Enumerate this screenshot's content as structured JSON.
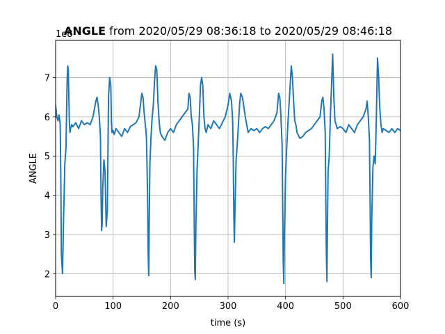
{
  "chart_data": {
    "type": "line",
    "title_bold": "ANGLE",
    "title_rest": " from 2020/05/29 08:36:18 to 2020/05/29 08:46:18",
    "xlabel": "time (s)",
    "ylabel": "ANGLE",
    "y_offset_text": "1e8",
    "xlim": [
      0,
      600
    ],
    "ylim": [
      1.42,
      7.95
    ],
    "xticks": [
      0,
      100,
      200,
      300,
      400,
      500,
      600
    ],
    "yticks": [
      2,
      3,
      4,
      5,
      6,
      7
    ],
    "grid": true,
    "series": [
      {
        "color": "#1f77b4",
        "x": [
          0,
          2,
          4,
          6,
          8,
          9,
          10,
          12,
          14,
          16,
          18,
          20,
          21,
          22,
          23,
          24,
          25,
          26,
          28,
          30,
          35,
          40,
          45,
          50,
          55,
          60,
          65,
          70,
          72,
          74,
          76,
          78,
          79,
          80,
          81,
          82,
          84,
          86,
          88,
          90,
          92,
          94,
          96,
          97,
          98,
          100,
          102,
          105,
          110,
          115,
          120,
          125,
          130,
          135,
          140,
          145,
          150,
          152,
          154,
          156,
          158,
          160,
          161,
          162,
          163,
          164,
          166,
          168,
          170,
          172,
          174,
          176,
          178,
          180,
          182,
          185,
          190,
          195,
          200,
          205,
          210,
          215,
          220,
          225,
          230,
          232,
          234,
          236,
          238,
          240,
          241,
          242,
          243,
          244,
          246,
          248,
          250,
          252,
          254,
          256,
          258,
          260,
          262,
          265,
          270,
          275,
          280,
          285,
          290,
          295,
          300,
          303,
          306,
          308,
          309,
          310,
          311,
          312,
          314,
          316,
          318,
          320,
          322,
          325,
          330,
          335,
          340,
          345,
          350,
          355,
          360,
          365,
          370,
          375,
          380,
          385,
          388,
          390,
          392,
          394,
          395,
          396,
          397,
          398,
          400,
          402,
          404,
          406,
          408,
          410,
          412,
          414,
          416,
          418,
          420,
          425,
          430,
          435,
          440,
          445,
          450,
          455,
          460,
          463,
          465,
          467,
          469,
          470,
          471,
          472,
          473,
          474,
          476,
          478,
          480,
          482,
          484,
          486,
          488,
          490,
          495,
          500,
          505,
          510,
          515,
          520,
          525,
          530,
          535,
          540,
          542,
          544,
          546,
          547,
          548,
          549,
          550,
          552,
          554,
          556,
          558,
          560,
          562,
          564,
          566,
          568,
          570,
          575,
          580,
          585,
          590,
          595,
          600
        ],
        "y": [
          6.3,
          6.0,
          5.9,
          6.05,
          5.8,
          4.5,
          2.5,
          2.0,
          3.5,
          4.8,
          5.2,
          6.9,
          7.3,
          7.2,
          6.5,
          5.8,
          5.6,
          5.7,
          5.8,
          5.75,
          5.85,
          5.7,
          5.9,
          5.8,
          5.85,
          5.8,
          6.0,
          6.4,
          6.5,
          6.3,
          6.0,
          5.5,
          4.0,
          3.1,
          3.3,
          4.2,
          4.9,
          4.6,
          3.2,
          3.6,
          6.5,
          7.0,
          6.8,
          5.9,
          5.6,
          5.65,
          5.55,
          5.7,
          5.6,
          5.5,
          5.7,
          5.6,
          5.75,
          5.8,
          5.85,
          6.0,
          6.6,
          6.5,
          6.1,
          5.8,
          5.5,
          4.0,
          2.5,
          1.95,
          3.5,
          4.8,
          5.5,
          6.0,
          6.3,
          6.9,
          7.3,
          7.2,
          6.4,
          5.9,
          5.6,
          5.5,
          5.4,
          5.6,
          5.7,
          5.6,
          5.8,
          5.9,
          6.0,
          6.1,
          6.2,
          6.6,
          6.5,
          6.0,
          5.8,
          5.2,
          3.5,
          2.1,
          1.85,
          3.2,
          4.6,
          5.3,
          6.0,
          6.8,
          7.0,
          6.8,
          6.0,
          5.7,
          5.6,
          5.8,
          5.7,
          5.9,
          5.8,
          5.7,
          5.85,
          6.0,
          6.3,
          6.6,
          6.4,
          5.9,
          5.0,
          3.5,
          2.8,
          3.6,
          4.9,
          5.3,
          5.8,
          6.3,
          6.6,
          6.5,
          6.0,
          5.6,
          5.7,
          5.65,
          5.7,
          5.6,
          5.7,
          5.75,
          5.7,
          5.8,
          5.9,
          6.1,
          6.6,
          6.5,
          6.0,
          5.3,
          3.8,
          2.3,
          1.75,
          3.0,
          4.5,
          5.2,
          5.8,
          6.3,
          6.8,
          7.3,
          7.0,
          6.4,
          5.9,
          5.8,
          5.6,
          5.45,
          5.5,
          5.6,
          5.65,
          5.7,
          5.8,
          5.9,
          6.0,
          6.4,
          6.5,
          6.2,
          5.6,
          4.0,
          2.5,
          1.8,
          3.3,
          4.6,
          5.0,
          6.0,
          6.8,
          7.6,
          6.5,
          5.9,
          5.8,
          5.7,
          5.75,
          5.7,
          5.6,
          5.8,
          5.7,
          5.6,
          5.8,
          5.9,
          6.0,
          6.2,
          6.4,
          6.0,
          5.4,
          4.0,
          2.4,
          1.9,
          3.4,
          4.7,
          5.0,
          4.8,
          6.0,
          7.5,
          7.0,
          6.2,
          5.8,
          5.6,
          5.7,
          5.65,
          5.6,
          5.7,
          5.6,
          5.7,
          5.65
        ]
      }
    ]
  }
}
